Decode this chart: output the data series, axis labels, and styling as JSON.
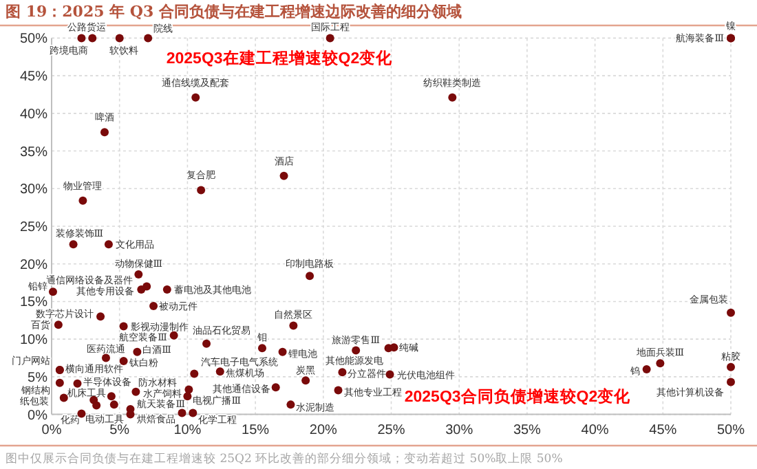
{
  "chart_data": {
    "type": "scatter",
    "title": "图 19：2025 年 Q3 合同负债与在建工程增速边际改善的细分领域",
    "xlabel": "2025Q3合同负债增速较Q2变化",
    "ylabel": "2025Q3在建工程增速较Q2变化",
    "xlim": [
      0,
      50
    ],
    "ylim": [
      0,
      50
    ],
    "xticks": [
      {
        "value": 0,
        "label": "0%"
      },
      {
        "value": 5,
        "label": "5%"
      },
      {
        "value": 10,
        "label": "10%"
      },
      {
        "value": 15,
        "label": "15%"
      },
      {
        "value": 20,
        "label": "20%"
      },
      {
        "value": 25,
        "label": "25%"
      },
      {
        "value": 30,
        "label": "30%"
      },
      {
        "value": 35,
        "label": "35%"
      },
      {
        "value": 40,
        "label": "40%"
      },
      {
        "value": 45,
        "label": "45%"
      },
      {
        "value": 50,
        "label": "50%"
      }
    ],
    "yticks": [
      {
        "value": 0,
        "label": "0%"
      },
      {
        "value": 5,
        "label": "5%"
      },
      {
        "value": 10,
        "label": "10%"
      },
      {
        "value": 15,
        "label": "15%"
      },
      {
        "value": 20,
        "label": "20%"
      },
      {
        "value": 25,
        "label": "25%"
      },
      {
        "value": 30,
        "label": "30%"
      },
      {
        "value": 35,
        "label": "35%"
      },
      {
        "value": 40,
        "label": "40%"
      },
      {
        "value": 45,
        "label": "45%"
      },
      {
        "value": 50,
        "label": "50%"
      }
    ],
    "grid": true,
    "marker": "circle",
    "series": [
      {
        "color": "#7a0a0a",
        "x": [
          2.2,
          3.0,
          5.0,
          7.1,
          20.5,
          50,
          50,
          10.6,
          29.5,
          3.9,
          11.0,
          17.1,
          2.3,
          1.6,
          4.2,
          6.4,
          7.0,
          6.6,
          8.5,
          0.1,
          7.5,
          5.3,
          0.5,
          3.6,
          9.0,
          11.4,
          15.5,
          17.0,
          17.8,
          19.0,
          22.4,
          24.8,
          25.2,
          24.9,
          21.4,
          18.7,
          21.1,
          16.5,
          17.6,
          50,
          44.8,
          43.8,
          50,
          50,
          6.3,
          5.3,
          4.0,
          0.6,
          0.6,
          0.6,
          1.9,
          10.5,
          12.4,
          6.2,
          10.1,
          10.0,
          0.9,
          3.1,
          3.3,
          5.8,
          5.8,
          10.4,
          2.2,
          4.4,
          4.6,
          9.6
        ],
        "values": [
          50,
          50,
          50,
          50,
          50,
          50,
          50,
          42.1,
          42.1,
          37.5,
          29.8,
          31.7,
          28.4,
          22.6,
          22.6,
          18.6,
          17.0,
          16.6,
          16.6,
          16.3,
          14.4,
          11.7,
          11.9,
          13.0,
          10.5,
          9.4,
          8.8,
          8.3,
          11.8,
          18.4,
          8.5,
          8.8,
          8.9,
          5.3,
          5.6,
          4.5,
          3.2,
          3.6,
          1.3,
          13.5,
          6.8,
          6.0,
          6.3,
          4.3,
          8.3,
          7.1,
          7.5,
          5.9,
          5.9,
          4.2,
          4.1,
          5.4,
          5.7,
          3.0,
          3.3,
          2.4,
          2.2,
          1.9,
          1.2,
          0.7,
          0.0,
          0.2,
          0.1,
          2.4,
          1.3,
          0.2
        ]
      }
    ],
    "annotations": [
      {
        "text": "跨境电商",
        "x": 2.2,
        "y": 50
      },
      {
        "text": "公路货运",
        "x": 3.0,
        "y": 50
      },
      {
        "text": "软饮料",
        "x": 5.0,
        "y": 50
      },
      {
        "text": "院线",
        "x": 7.1,
        "y": 50
      },
      {
        "text": "国际工程",
        "x": 20.5,
        "y": 50
      },
      {
        "text": "航海装备Ⅲ",
        "x": 50,
        "y": 50
      },
      {
        "text": "镍",
        "x": 50,
        "y": 50
      },
      {
        "text": "通信线缆及配套",
        "x": 10.6,
        "y": 42.1
      },
      {
        "text": "纺织鞋类制造",
        "x": 29.5,
        "y": 42.1
      },
      {
        "text": "啤酒",
        "x": 3.9,
        "y": 37.5
      },
      {
        "text": "复合肥",
        "x": 11.0,
        "y": 29.8
      },
      {
        "text": "酒店",
        "x": 17.1,
        "y": 31.7
      },
      {
        "text": "物业管理",
        "x": 2.3,
        "y": 28.4
      },
      {
        "text": "装修装饰Ⅲ",
        "x": 1.6,
        "y": 22.6
      },
      {
        "text": "文化用品",
        "x": 4.2,
        "y": 22.6
      },
      {
        "text": "动物保健Ⅲ",
        "x": 6.4,
        "y": 18.6
      },
      {
        "text": "通信网络设备及器件",
        "x": 7.0,
        "y": 17.0
      },
      {
        "text": "其他专用设备",
        "x": 6.6,
        "y": 16.6
      },
      {
        "text": "蓄电池及其他电池",
        "x": 8.5,
        "y": 16.6
      },
      {
        "text": "铅锌",
        "x": 0.1,
        "y": 16.3
      },
      {
        "text": "被动元件",
        "x": 7.5,
        "y": 14.4
      },
      {
        "text": "影视动漫制作",
        "x": 5.3,
        "y": 11.7
      },
      {
        "text": "百货",
        "x": 0.5,
        "y": 11.9
      },
      {
        "text": "数字芯片设计",
        "x": 3.6,
        "y": 13.0
      },
      {
        "text": "航空装备Ⅲ",
        "x": 9.0,
        "y": 10.5
      },
      {
        "text": "油品石化贸易",
        "x": 11.4,
        "y": 9.4
      },
      {
        "text": "钼",
        "x": 15.5,
        "y": 8.8
      },
      {
        "text": "锂电池",
        "x": 17.0,
        "y": 8.3
      },
      {
        "text": "自然景区",
        "x": 17.8,
        "y": 11.8
      },
      {
        "text": "印制电路板",
        "x": 19.0,
        "y": 18.4
      },
      {
        "text": "旅游零售Ⅲ",
        "x": 22.4,
        "y": 8.5
      },
      {
        "text": "其他能源发电",
        "x": 24.8,
        "y": 8.8
      },
      {
        "text": "纯碱",
        "x": 25.2,
        "y": 8.9
      },
      {
        "text": "光伏电池组件",
        "x": 24.9,
        "y": 5.3
      },
      {
        "text": "分立器件",
        "x": 21.4,
        "y": 5.6
      },
      {
        "text": "炭黑",
        "x": 18.7,
        "y": 4.5
      },
      {
        "text": "其他专业工程",
        "x": 21.1,
        "y": 3.2
      },
      {
        "text": "其他通信设备",
        "x": 16.5,
        "y": 3.6
      },
      {
        "text": "水泥制造",
        "x": 17.6,
        "y": 1.3
      },
      {
        "text": "金属包装",
        "x": 50,
        "y": 13.5
      },
      {
        "text": "地面兵装Ⅲ",
        "x": 44.8,
        "y": 6.8
      },
      {
        "text": "钨",
        "x": 43.8,
        "y": 6.0
      },
      {
        "text": "粘胶",
        "x": 50,
        "y": 6.3
      },
      {
        "text": "其他计算机设备",
        "x": 50,
        "y": 4.3
      },
      {
        "text": "白酒Ⅲ",
        "x": 6.3,
        "y": 8.3
      },
      {
        "text": "钛白粉",
        "x": 5.3,
        "y": 7.1
      },
      {
        "text": "医药流通",
        "x": 4.0,
        "y": 7.5
      },
      {
        "text": "门户网站",
        "x": 0.6,
        "y": 5.9
      },
      {
        "text": "横向通用软件",
        "x": 0.6,
        "y": 5.9
      },
      {
        "text": "钢结构",
        "x": 0.6,
        "y": 4.2
      },
      {
        "text": "半导体设备",
        "x": 1.9,
        "y": 4.1
      },
      {
        "text": "汽车电子电气系统",
        "x": 10.5,
        "y": 5.4
      },
      {
        "text": "焦煤机场",
        "x": 12.4,
        "y": 5.7
      },
      {
        "text": "防水材料",
        "x": 6.2,
        "y": 3.0
      },
      {
        "text": "水产饲料",
        "x": 10.1,
        "y": 3.3
      },
      {
        "text": "电视广播Ⅲ",
        "x": 10.0,
        "y": 2.4
      },
      {
        "text": "纸包装",
        "x": 0.9,
        "y": 2.2
      },
      {
        "text": "机床工具",
        "x": 3.1,
        "y": 1.9
      },
      {
        "text": "电动工具",
        "x": 3.3,
        "y": 1.2
      },
      {
        "text": "航天装备Ⅲ",
        "x": 5.8,
        "y": 0.7
      },
      {
        "text": "烘焙食品",
        "x": 5.8,
        "y": 0.0
      },
      {
        "text": "化学工程",
        "x": 10.4,
        "y": 0.2
      },
      {
        "text": "化药",
        "x": 2.2,
        "y": 0.1
      },
      "图中仅展示合同负债与在建工程增速较 25Q2 环比改善的部分细分领域；变动若超过 50%取上限 50%"
    ]
  }
}
